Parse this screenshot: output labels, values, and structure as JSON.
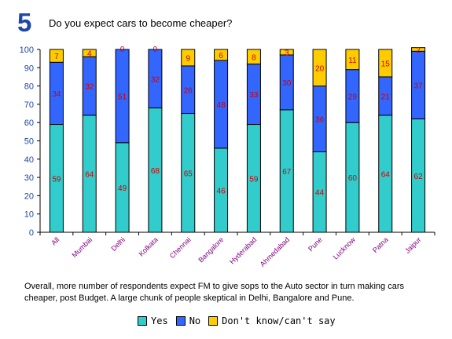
{
  "header": {
    "number": "5",
    "question": "Do you expect cars to become cheaper?"
  },
  "note": "Overall, more number of respondents expect FM to give sops to the Auto sector in turn making cars cheaper, post Budget. A large chunk of people skeptical in Delhi, Bangalore and Pune.",
  "colors": {
    "yes": "#33cccc",
    "no": "#3366ff",
    "dontknow": "#ffcc00",
    "label_text": "#cc0000",
    "category_text": "#800080",
    "axis_text": "#1e47a8"
  },
  "legend": {
    "yes": "Yes",
    "no": "No",
    "dontknow": "Don't know/can't say"
  },
  "chart_data": {
    "type": "bar",
    "stacked": true,
    "categories": [
      "All",
      "Mumbai",
      "Delhi",
      "Kolkata",
      "Chennai",
      "Bangalore",
      "Hyderabad",
      "Ahmedabad",
      "Pune",
      "Lucknow",
      "Patna",
      "Jaipur"
    ],
    "series": [
      {
        "name": "Yes",
        "values": [
          59,
          64,
          49,
          68,
          65,
          46,
          59,
          67,
          44,
          60,
          64,
          62
        ]
      },
      {
        "name": "No",
        "values": [
          34,
          32,
          51,
          32,
          26,
          48,
          33,
          30,
          36,
          29,
          21,
          37
        ]
      },
      {
        "name": "Don't know/can't say",
        "values": [
          7,
          4,
          0,
          0,
          9,
          6,
          8,
          3,
          20,
          11,
          15,
          2
        ]
      }
    ],
    "ylim": [
      0,
      100
    ],
    "yticks": [
      0,
      10,
      20,
      30,
      40,
      50,
      60,
      70,
      80,
      90,
      100
    ],
    "grid": false,
    "legend_position": "bottom"
  }
}
